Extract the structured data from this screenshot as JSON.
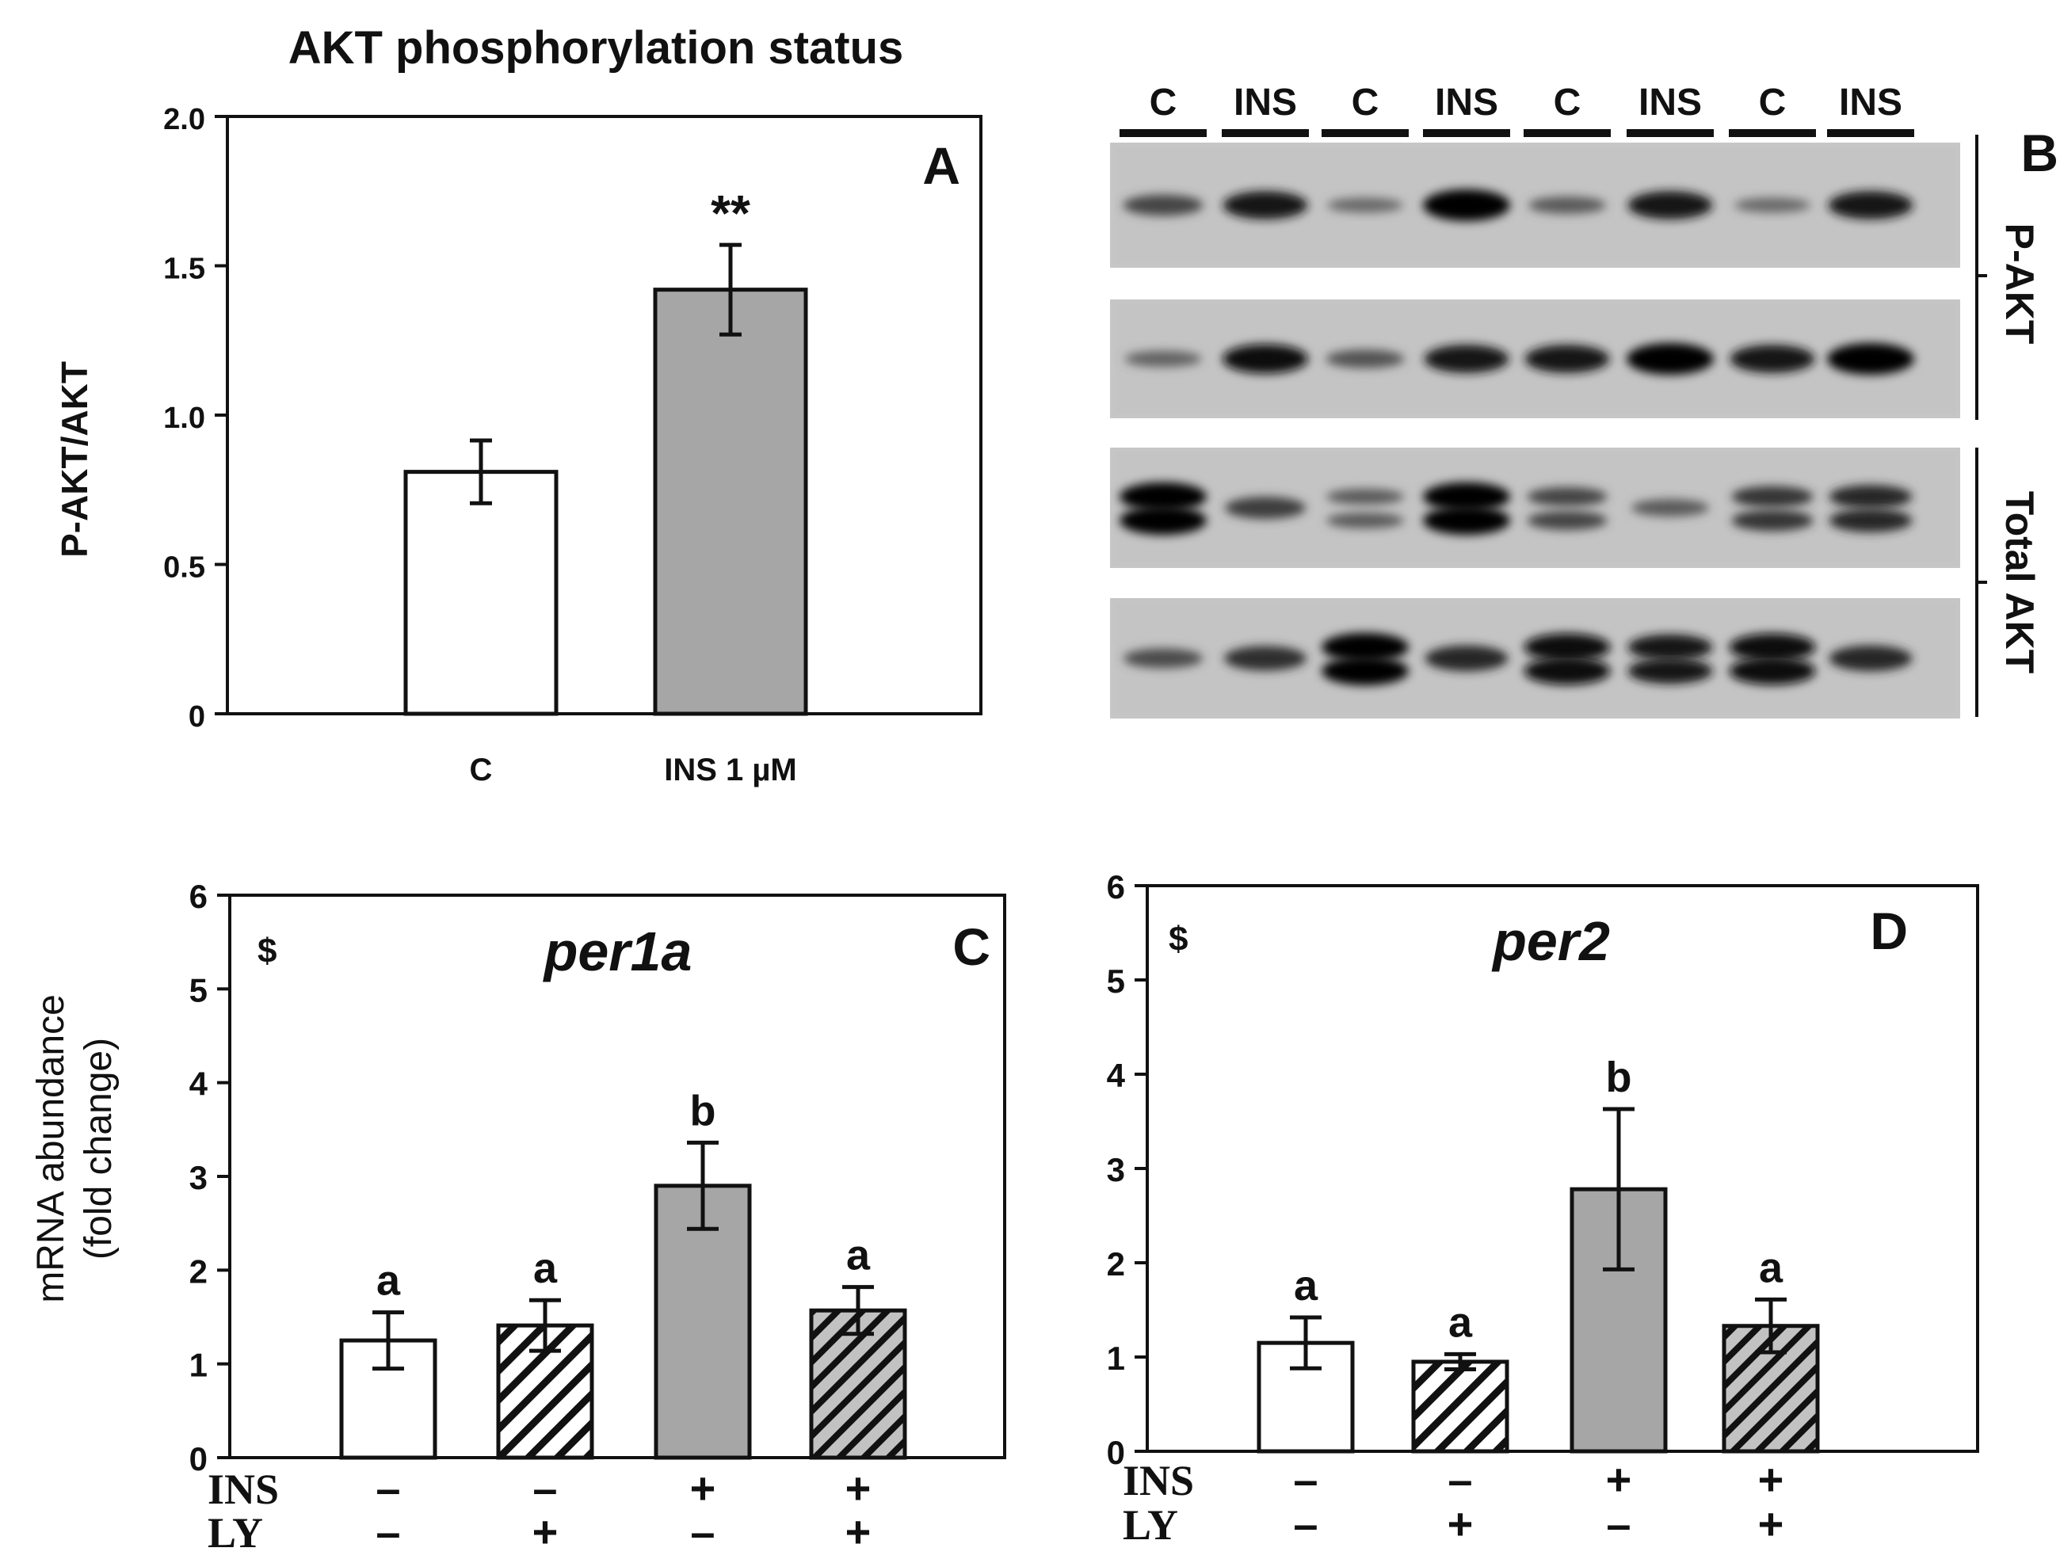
{
  "chart_data": [
    {
      "panel": "A",
      "type": "bar",
      "title": "AKT phosphorylation status",
      "ylabel": "P-AKT/AKT",
      "xlabel": "",
      "ylim": [
        0,
        2.0
      ],
      "yticks": [
        "0",
        "0.5",
        "1.0",
        "1.5",
        "2.0"
      ],
      "ytick_values": [
        0,
        0.5,
        1.0,
        1.5,
        2.0
      ],
      "categories": [
        "C",
        "INS 1 µM"
      ],
      "values": [
        0.81,
        1.42
      ],
      "errors": [
        0.105,
        0.15
      ],
      "fills": [
        "#ffffff",
        "#a6a6a6"
      ],
      "annotations": [
        "",
        "**"
      ],
      "grid": false
    },
    {
      "panel": "C",
      "type": "bar",
      "title": "per1a",
      "ylabel": "mRNA abundance (fold change)",
      "ylabel_lines": [
        "mRNA abundance",
        "(fold change)"
      ],
      "ylim": [
        0,
        6
      ],
      "yticks": [
        "0",
        "1",
        "2",
        "3",
        "4",
        "5",
        "6"
      ],
      "ytick_values": [
        0,
        1,
        2,
        3,
        4,
        5,
        6
      ],
      "marker": "$",
      "treatments": [
        {
          "label": "INS",
          "values": [
            "–",
            "–",
            "+",
            "+"
          ]
        },
        {
          "label": "LY",
          "values": [
            "–",
            "+",
            "–",
            "+"
          ]
        }
      ],
      "values": [
        1.25,
        1.41,
        2.9,
        1.57
      ],
      "errors": [
        0.3,
        0.27,
        0.46,
        0.25
      ],
      "patterns": [
        "white",
        "hatch-white",
        "gray",
        "hatch-gray"
      ],
      "letters": [
        "a",
        "a",
        "b",
        "a"
      ],
      "grid": false
    },
    {
      "panel": "D",
      "type": "bar",
      "title": "per2",
      "ylim": [
        0,
        6
      ],
      "yticks": [
        "0",
        "1",
        "2",
        "3",
        "4",
        "5",
        "6"
      ],
      "ytick_values": [
        0,
        1,
        2,
        3,
        4,
        5,
        6
      ],
      "marker": "$",
      "treatments": [
        {
          "label": "INS",
          "values": [
            "–",
            "–",
            "+",
            "+"
          ]
        },
        {
          "label": "LY",
          "values": [
            "–",
            "+",
            "–",
            "+"
          ]
        }
      ],
      "values": [
        1.15,
        0.95,
        2.78,
        1.33
      ],
      "errors": [
        0.27,
        0.08,
        0.85,
        0.28
      ],
      "patterns": [
        "white",
        "hatch-white",
        "gray",
        "hatch-gray"
      ],
      "letters": [
        "a",
        "a",
        "b",
        "a"
      ],
      "grid": false
    }
  ],
  "blot": {
    "panel": "B",
    "lanes": [
      "C",
      "INS",
      "C",
      "INS",
      "C",
      "INS",
      "C",
      "INS"
    ],
    "group_labels": [
      "P-AKT",
      "Total AKT"
    ],
    "rows": [
      {
        "group": "P-AKT",
        "bands": [
          0.55,
          0.85,
          0.3,
          1.0,
          0.4,
          0.85,
          0.3,
          0.85
        ],
        "doublet": [
          false,
          false,
          false,
          false,
          false,
          false,
          false,
          false
        ]
      },
      {
        "group": "P-AKT",
        "bands": [
          0.35,
          0.9,
          0.45,
          0.85,
          0.85,
          1.0,
          0.85,
          1.0
        ],
        "doublet": [
          false,
          false,
          false,
          false,
          false,
          false,
          false,
          false
        ]
      },
      {
        "group": "Total AKT",
        "bands": [
          1.0,
          0.6,
          0.4,
          1.0,
          0.55,
          0.4,
          0.65,
          0.75
        ],
        "doublet": [
          true,
          false,
          true,
          true,
          true,
          false,
          true,
          true
        ]
      },
      {
        "group": "Total AKT",
        "bands": [
          0.5,
          0.7,
          1.0,
          0.75,
          0.95,
          0.85,
          0.95,
          0.75
        ],
        "doublet": [
          false,
          false,
          true,
          false,
          true,
          true,
          true,
          false
        ]
      }
    ]
  }
}
